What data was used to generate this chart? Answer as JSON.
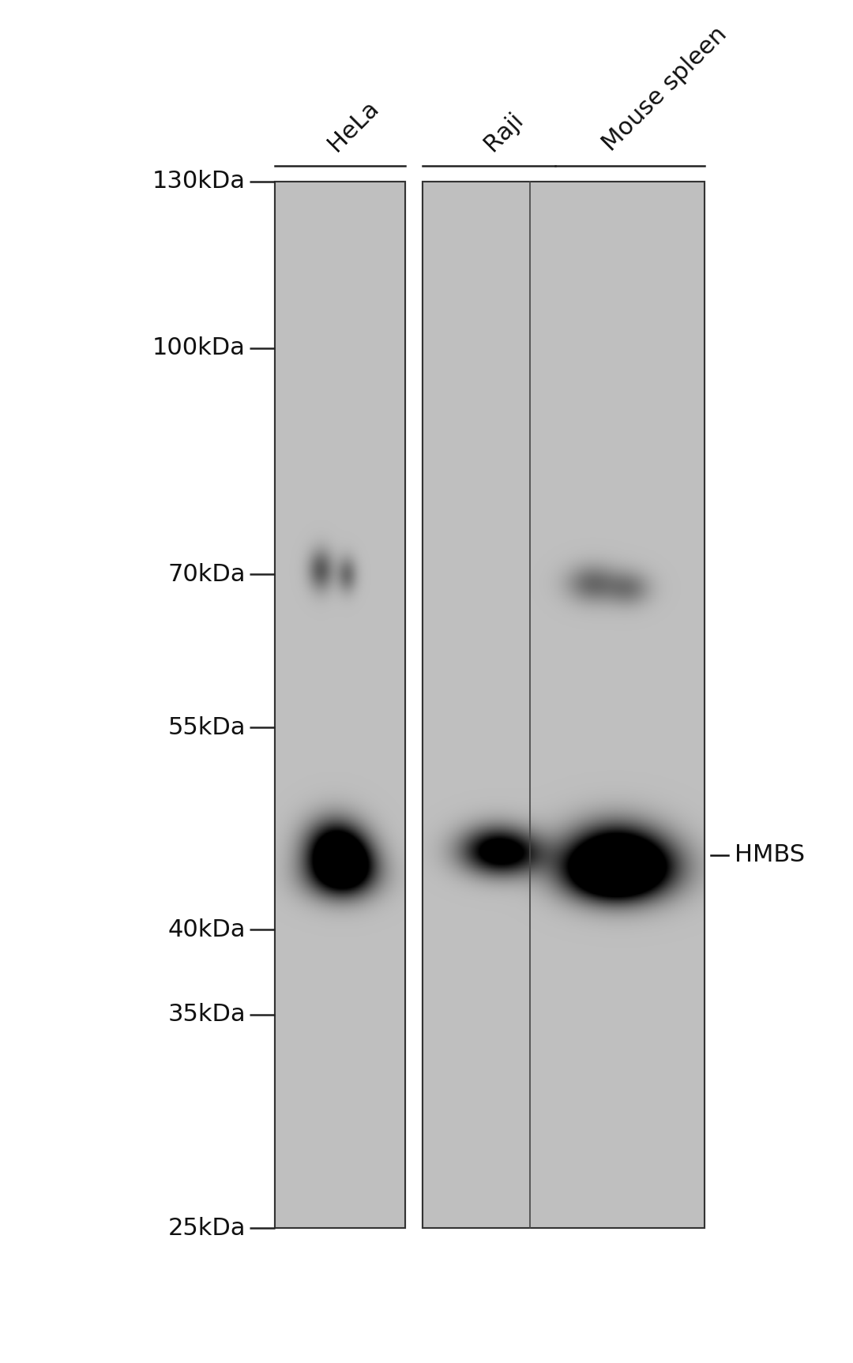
{
  "background_color": "#ffffff",
  "gel_bg_color": "#b8b8b8",
  "lane_labels": [
    "HeLa",
    "Raji",
    "Mouse spleen"
  ],
  "mw_markers": [
    "130kDa",
    "100kDa",
    "70kDa",
    "55kDa",
    "40kDa",
    "35kDa",
    "25kDa"
  ],
  "mw_values": [
    130,
    100,
    70,
    55,
    40,
    35,
    25
  ],
  "annotation_label": "HMBS",
  "annotation_mw": 45,
  "label_fontsize": 22,
  "marker_fontsize": 22
}
